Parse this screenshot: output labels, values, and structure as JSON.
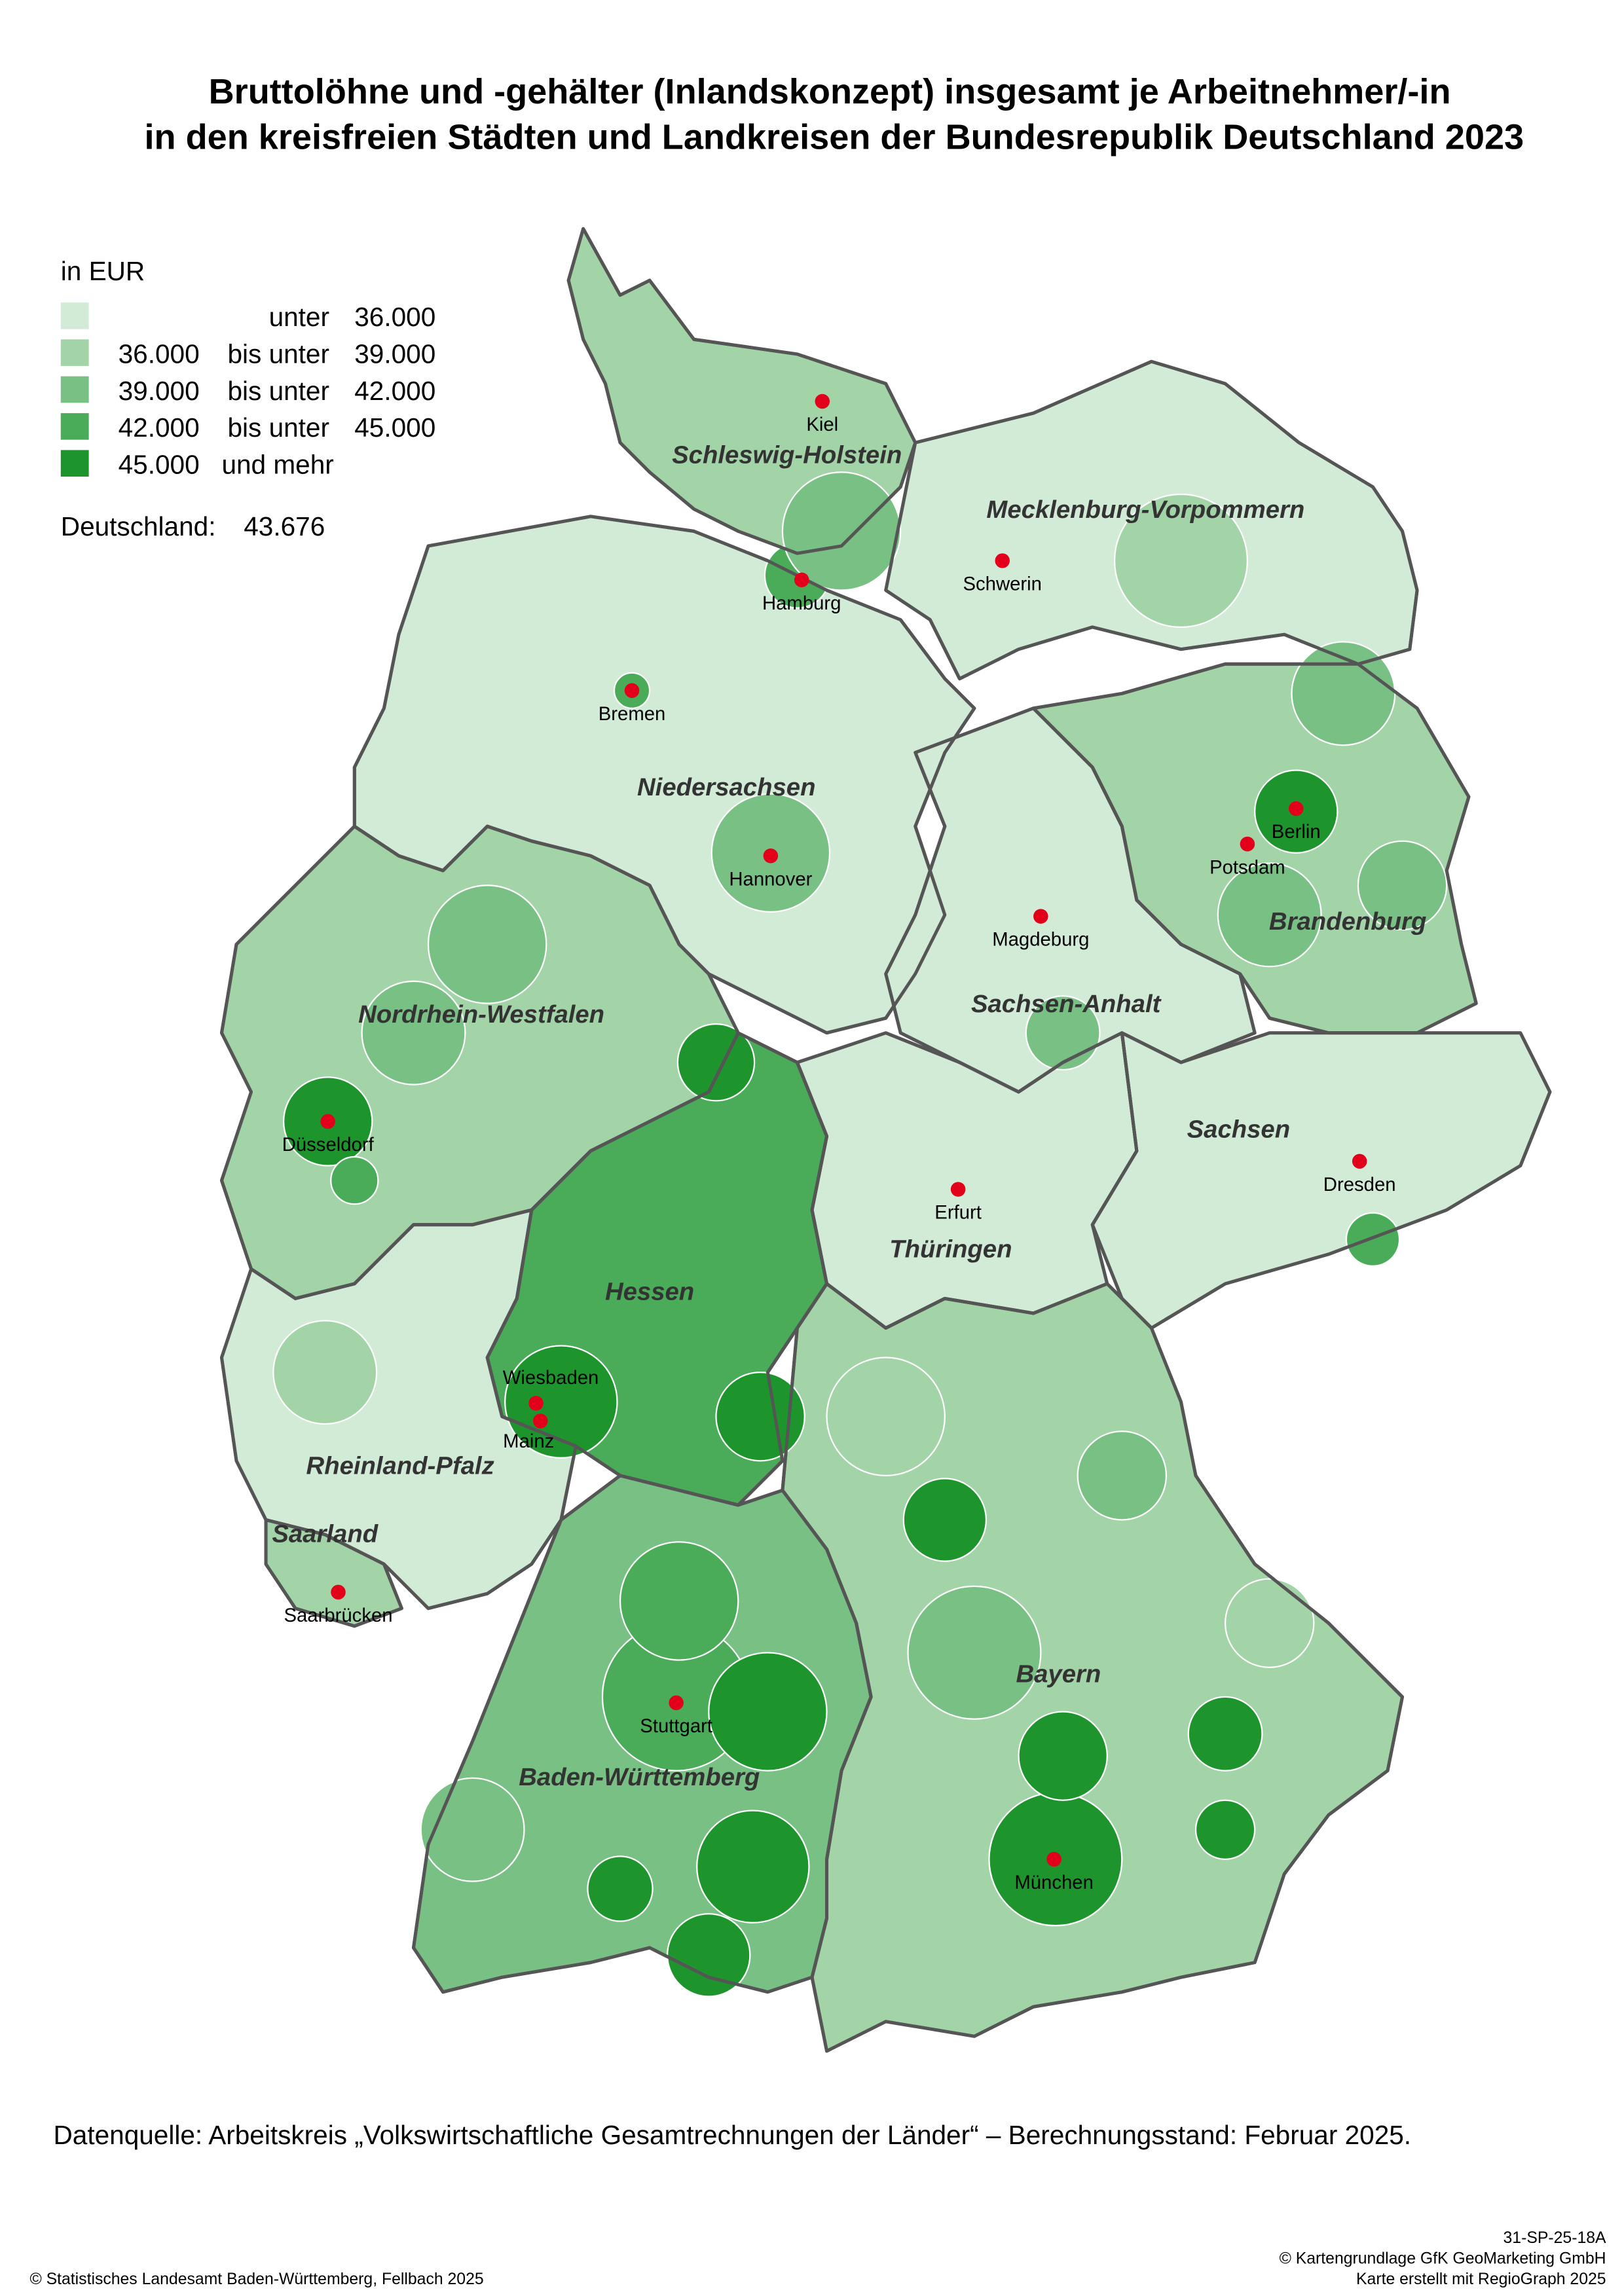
{
  "title": {
    "line1": "Bruttolöhne und -gehälter (Inlandskonzept) insgesamt je Arbeitnehmer/-in",
    "line2": "in den kreisfreien Städten und Landkreisen der Bundesrepublik Deutschland 2023"
  },
  "legend": {
    "unit": "in EUR",
    "classes": [
      {
        "from": "",
        "op": "unter",
        "to": "36.000",
        "color": "#d2ebd6"
      },
      {
        "from": "36.000",
        "op": "bis unter",
        "to": "39.000",
        "color": "#a2d4a8"
      },
      {
        "from": "39.000",
        "op": "bis unter",
        "to": "42.000",
        "color": "#78c083"
      },
      {
        "from": "42.000",
        "op": "bis unter",
        "to": "45.000",
        "color": "#4aab58"
      },
      {
        "from": "45.000",
        "op": "und mehr",
        "to": "",
        "color": "#1e952c"
      }
    ],
    "national_label": "Deutschland:",
    "national_value": "43.676"
  },
  "states": [
    {
      "name": "Schleswig-Holstein",
      "class": 1
    },
    {
      "name": "Mecklenburg-Vorpommern",
      "class": 0
    },
    {
      "name": "Niedersachsen",
      "class": 0
    },
    {
      "name": "Brandenburg",
      "class": 1
    },
    {
      "name": "Sachsen-Anhalt",
      "class": 0
    },
    {
      "name": "Nordrhein-Westfalen",
      "class": 1
    },
    {
      "name": "Sachsen",
      "class": 0
    },
    {
      "name": "Thüringen",
      "class": 0
    },
    {
      "name": "Hessen",
      "class": 3
    },
    {
      "name": "Rheinland-Pfalz",
      "class": 0
    },
    {
      "name": "Saarland",
      "class": 1
    },
    {
      "name": "Bayern",
      "class": 1
    },
    {
      "name": "Baden-Württemberg",
      "class": 2
    }
  ],
  "cities": [
    "Kiel",
    "Hamburg",
    "Schwerin",
    "Bremen",
    "Hannover",
    "Berlin",
    "Potsdam",
    "Magdeburg",
    "Düsseldorf",
    "Dresden",
    "Erfurt",
    "Wiesbaden",
    "Mainz",
    "Saarbrücken",
    "Stuttgart",
    "München"
  ],
  "city_marker_color": "#e2001a",
  "source": "Datenquelle: Arbeitskreis  „Volkswirtschaftliche Gesamtrechnungen der Länder“ – Berechnungsstand: Februar 2025.",
  "footer": {
    "left": "© Statistisches Landesamt Baden-Württemberg, Fellbach 2025",
    "code": "31-SP-25-18A",
    "basemap": "© Kartengrundlage GfK GeoMarketing GmbH",
    "software": "Karte erstellt mit RegioGraph 2025"
  }
}
